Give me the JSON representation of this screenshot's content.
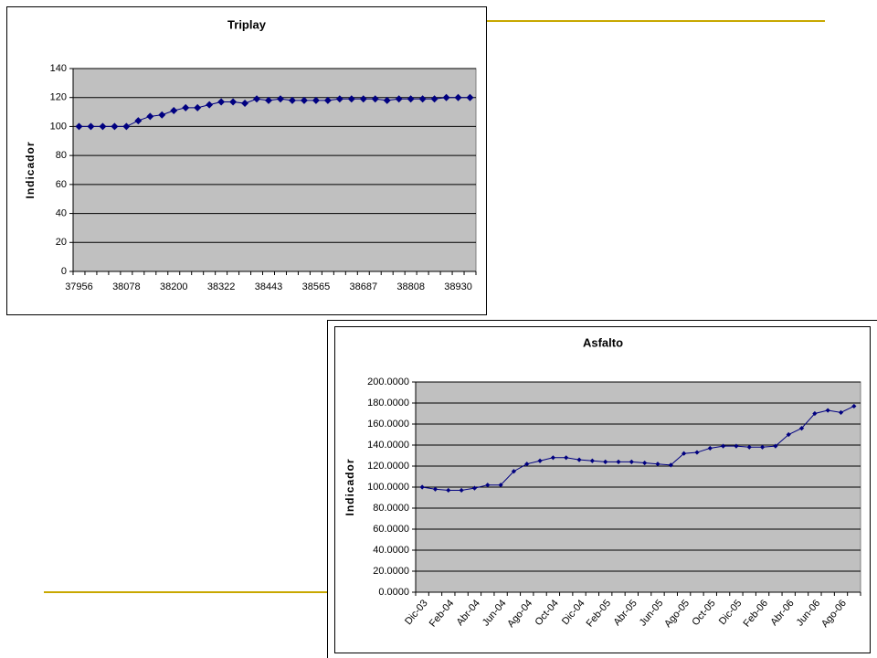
{
  "chart_data": [
    {
      "type": "line",
      "title": "Triplay",
      "ylabel": "Indicador",
      "color": "#000080",
      "grid": true,
      "categories": [
        "37956",
        null,
        null,
        null,
        "38078",
        null,
        null,
        null,
        "38200",
        null,
        null,
        null,
        "38322",
        null,
        null,
        null,
        "38443",
        null,
        null,
        null,
        "38565",
        null,
        null,
        null,
        "38687",
        null,
        null,
        null,
        "38808",
        null,
        null,
        null,
        "38930",
        null
      ],
      "values": [
        100,
        100,
        100,
        100,
        100,
        104,
        107,
        108,
        111,
        113,
        113,
        115,
        117,
        117,
        116,
        119,
        118,
        119,
        118,
        118,
        118,
        118,
        119,
        119,
        119,
        119,
        118,
        119,
        119,
        119,
        119,
        120,
        120,
        120
      ],
      "ylim": [
        0,
        140
      ],
      "yticks": [
        0,
        20,
        40,
        60,
        80,
        100,
        120,
        140
      ]
    },
    {
      "type": "line",
      "title": "Asfalto",
      "ylabel": "Indicador",
      "color": "#000080",
      "grid": true,
      "categories": [
        "Dic-03",
        null,
        "Feb-04",
        null,
        "Abr-04",
        null,
        "Jun-04",
        null,
        "Ago-04",
        null,
        "Oct-04",
        null,
        "Dic-04",
        null,
        "Feb-05",
        null,
        "Abr-05",
        null,
        "Jun-05",
        null,
        "Ago-05",
        null,
        "Oct-05",
        null,
        "Dic-05",
        null,
        "Feb-06",
        null,
        "Abr-06",
        null,
        "Jun-06",
        null,
        "Ago-06",
        null
      ],
      "values": [
        100,
        98,
        97,
        97,
        99,
        102,
        102,
        115,
        122,
        125,
        128,
        128,
        126,
        125,
        124,
        124,
        124,
        123,
        122,
        121,
        132,
        133,
        137,
        139,
        139,
        138,
        138,
        139,
        150,
        156,
        170,
        173,
        171,
        177
      ],
      "ylim": [
        0,
        200
      ],
      "yticks": [
        {
          "value": 0,
          "label": "0.0000"
        },
        {
          "value": 20,
          "label": "20.0000"
        },
        {
          "value": 40,
          "label": "40.0000"
        },
        {
          "value": 60,
          "label": "60.0000"
        },
        {
          "value": 80,
          "label": "80.0000"
        },
        {
          "value": 100,
          "label": "100.0000"
        },
        {
          "value": 120,
          "label": "120.0000"
        },
        {
          "value": 140,
          "label": "140.0000"
        },
        {
          "value": 160,
          "label": "160.0000"
        },
        {
          "value": 180,
          "label": "180.0000"
        },
        {
          "value": 200,
          "label": "200.0000"
        }
      ]
    }
  ]
}
